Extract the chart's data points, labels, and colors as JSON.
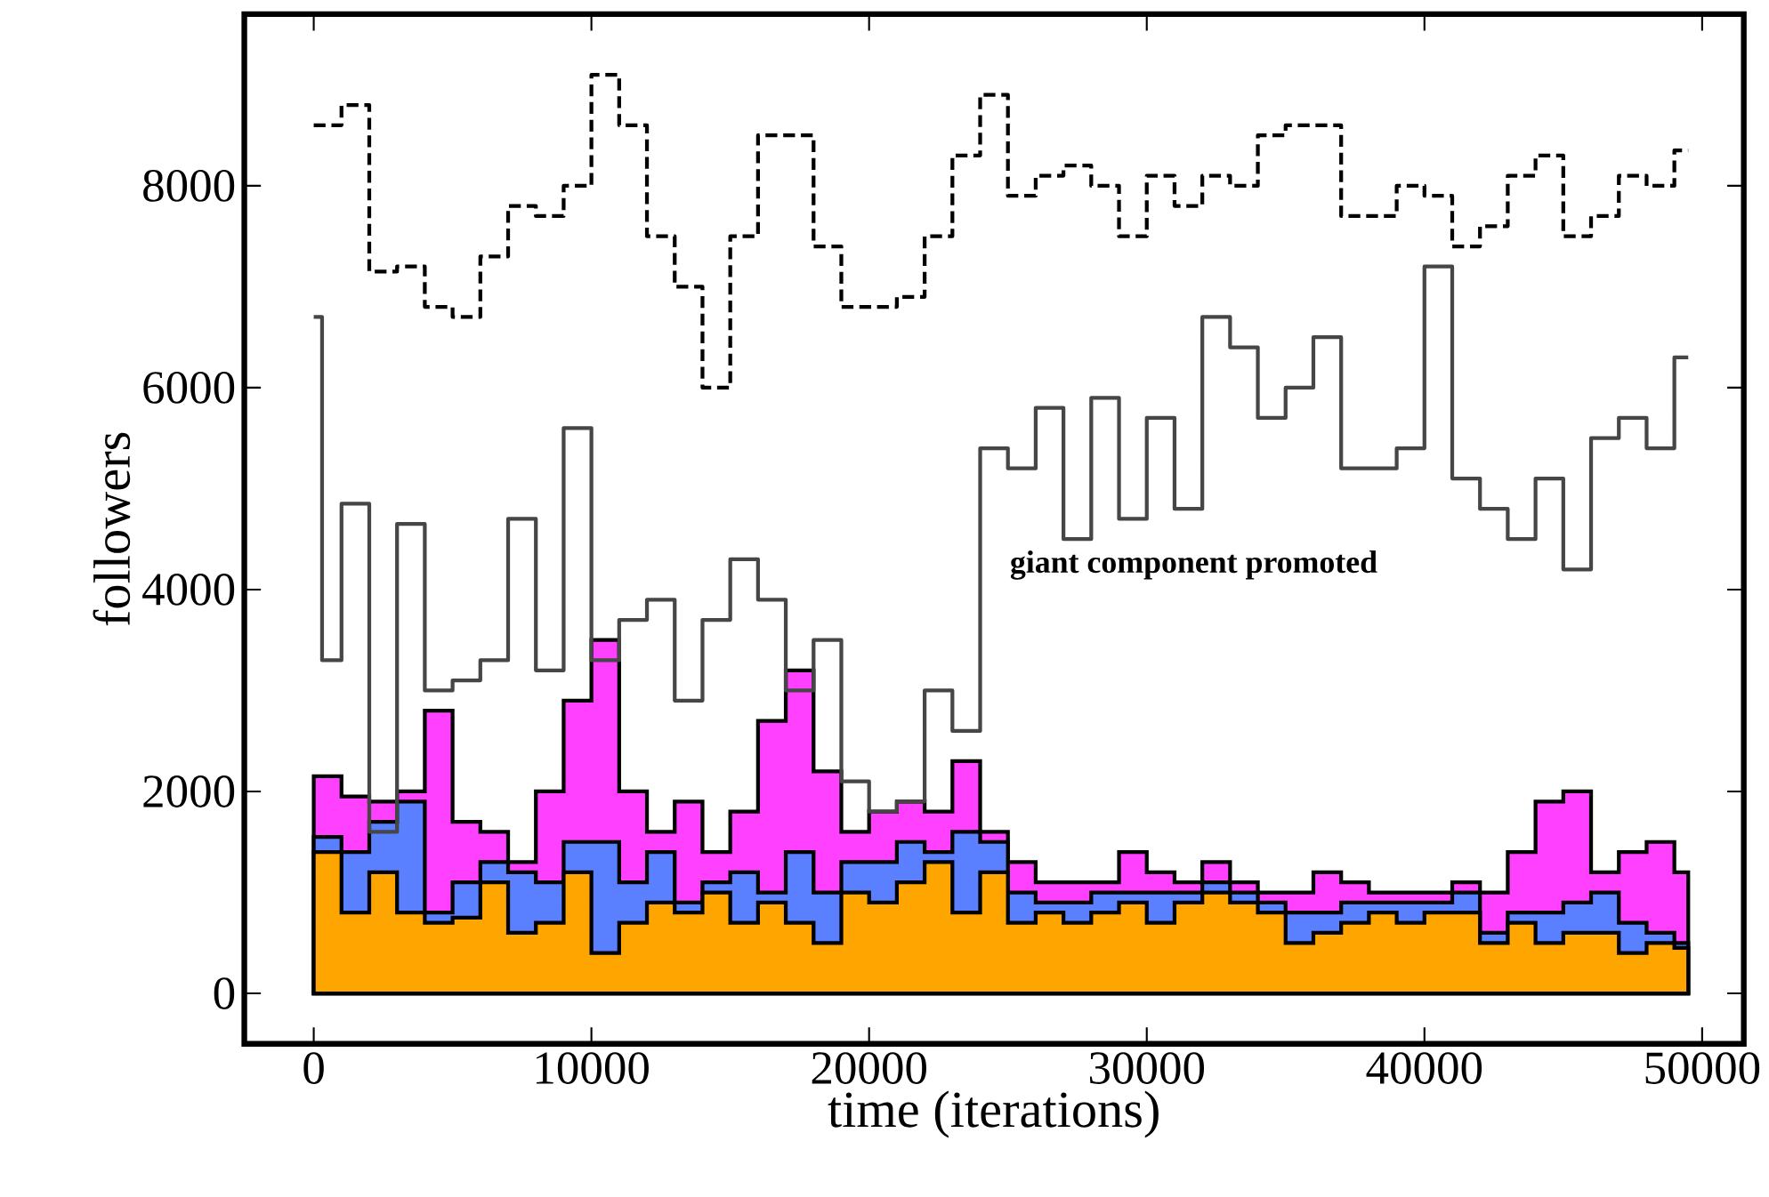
{
  "chart_data": {
    "type": "step",
    "xlabel": "time (iterations)",
    "ylabel": "followers",
    "x": [
      0,
      1000,
      2000,
      3000,
      4000,
      5000,
      6000,
      7000,
      8000,
      9000,
      10000,
      11000,
      12000,
      13000,
      14000,
      15000,
      16000,
      17000,
      18000,
      19000,
      20000,
      21000,
      22000,
      23000,
      24000,
      25000,
      26000,
      27000,
      28000,
      29000,
      30000,
      31000,
      32000,
      33000,
      34000,
      35000,
      36000,
      37000,
      38000,
      39000,
      40000,
      41000,
      42000,
      43000,
      44000,
      45000,
      46000,
      47000,
      48000,
      49000,
      49500
    ],
    "stacked": true,
    "series": [
      {
        "type": "area",
        "color": "#ffa500",
        "values": [
          1400,
          800,
          1200,
          800,
          700,
          750,
          1100,
          600,
          700,
          1200,
          400,
          700,
          900,
          800,
          1000,
          700,
          900,
          700,
          500,
          1000,
          900,
          1100,
          1300,
          800,
          1200,
          700,
          800,
          700,
          800,
          900,
          700,
          900,
          1000,
          900,
          800,
          500,
          600,
          700,
          800,
          700,
          800,
          800,
          500,
          700,
          500,
          600,
          600,
          400,
          500,
          450,
          450
        ]
      },
      {
        "type": "area",
        "color": "#5a7fff",
        "values": [
          150,
          600,
          500,
          1100,
          100,
          350,
          200,
          600,
          400,
          300,
          1100,
          400,
          500,
          100,
          100,
          500,
          100,
          700,
          500,
          300,
          400,
          400,
          100,
          800,
          300,
          300,
          100,
          200,
          200,
          100,
          300,
          100,
          100,
          100,
          100,
          300,
          200,
          200,
          100,
          200,
          100,
          200,
          100,
          100,
          300,
          300,
          400,
          300,
          100,
          50,
          50
        ]
      },
      {
        "type": "area",
        "color": "#ff40ff",
        "values": [
          600,
          550,
          200,
          100,
          2000,
          600,
          300,
          100,
          900,
          1400,
          2000,
          900,
          200,
          1000,
          300,
          600,
          1700,
          1800,
          1200,
          300,
          500,
          400,
          400,
          700,
          100,
          300,
          200,
          200,
          100,
          400,
          200,
          100,
          200,
          100,
          100,
          200,
          400,
          200,
          100,
          100,
          100,
          100,
          400,
          600,
          1100,
          1100,
          200,
          700,
          900,
          700,
          700
        ]
      },
      {
        "color": "#464646",
        "x": [
          0,
          300,
          1000,
          2000,
          3000,
          4000,
          5000,
          6000,
          7000,
          8000,
          9000,
          10000,
          11000,
          12000,
          13000,
          14000,
          15000,
          16000,
          17000,
          18000,
          19000,
          20000,
          21000,
          22000,
          23000,
          24000,
          25000,
          26000,
          27000,
          28000,
          29000,
          30000,
          31000,
          32000,
          33000,
          34000,
          35000,
          36000,
          37000,
          38000,
          39000,
          40000,
          41000,
          42000,
          43000,
          44000,
          45000,
          46000,
          47000,
          48000,
          49000,
          49500
        ],
        "values": [
          6700,
          3300,
          4850,
          1600,
          4650,
          3000,
          3100,
          3300,
          4700,
          3200,
          5600,
          3300,
          3700,
          3900,
          2900,
          3700,
          4300,
          3900,
          3000,
          3500,
          2100,
          1800,
          1900,
          3000,
          2600,
          5400,
          5200,
          5800,
          4500,
          5900,
          4700,
          5700,
          4800,
          6700,
          6400,
          5700,
          6000,
          6500,
          5200,
          5200,
          5400,
          7200,
          5100,
          4800,
          4500,
          5100,
          4200,
          5500,
          5700,
          5400,
          6300,
          6300
        ]
      },
      {
        "color": "#000000",
        "line_style": "dashed",
        "values": [
          8600,
          8800,
          7150,
          7200,
          6800,
          6700,
          7300,
          7800,
          7700,
          8000,
          9100,
          8600,
          7500,
          7000,
          6000,
          7500,
          8500,
          8500,
          7400,
          6800,
          6800,
          6900,
          7500,
          8300,
          8900,
          7900,
          8100,
          8200,
          8000,
          7500,
          8100,
          7800,
          8100,
          8000,
          8500,
          8600,
          8600,
          7700,
          7700,
          8000,
          7900,
          7400,
          7600,
          8100,
          8300,
          7500,
          7700,
          8100,
          8000,
          8350,
          8350
        ]
      }
    ],
    "annotations": [
      "**giant component promoted**"
    ],
    "xlim": [
      -2500,
      51500
    ],
    "ylim": [
      -500,
      9700
    ],
    "xticks": [
      0,
      10000,
      20000,
      30000,
      40000,
      50000
    ],
    "yticks": [
      0,
      2000,
      4000,
      6000,
      8000
    ]
  }
}
